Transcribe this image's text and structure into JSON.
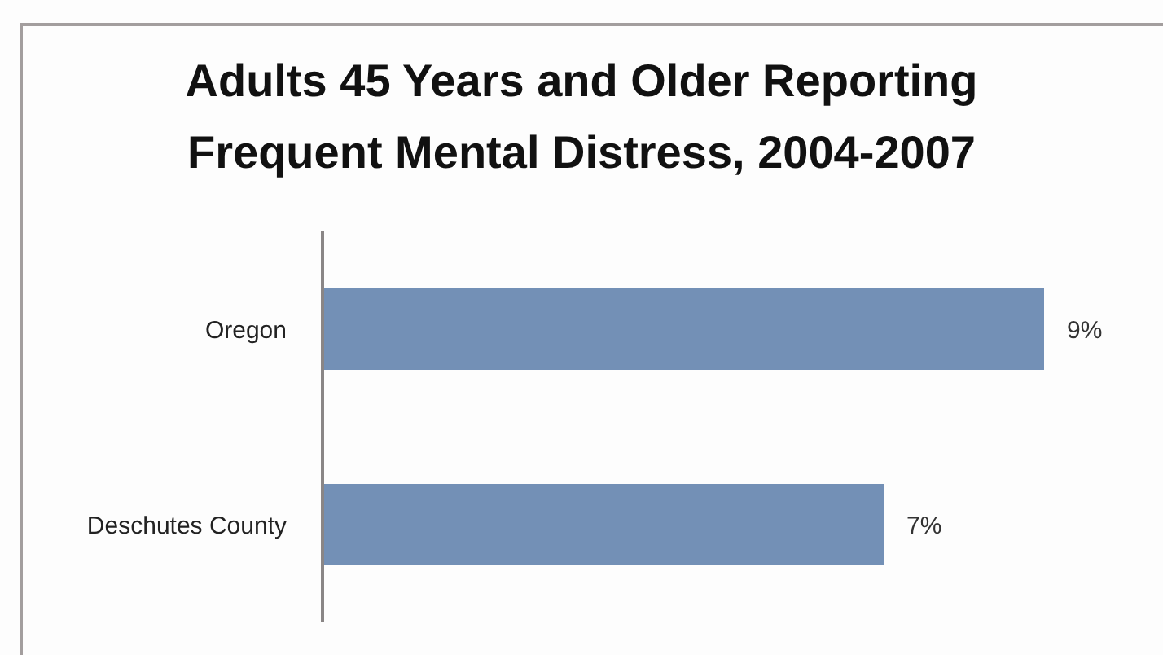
{
  "chart_data": {
    "type": "bar",
    "orientation": "horizontal",
    "title": "Adults 45 Years and Older Reporting Frequent Mental Distress, 2004-2007",
    "categories": [
      "Oregon",
      "Deschutes County"
    ],
    "values": [
      9,
      7
    ],
    "value_labels": [
      "9%",
      "7%"
    ],
    "color": "#7390b6"
  }
}
